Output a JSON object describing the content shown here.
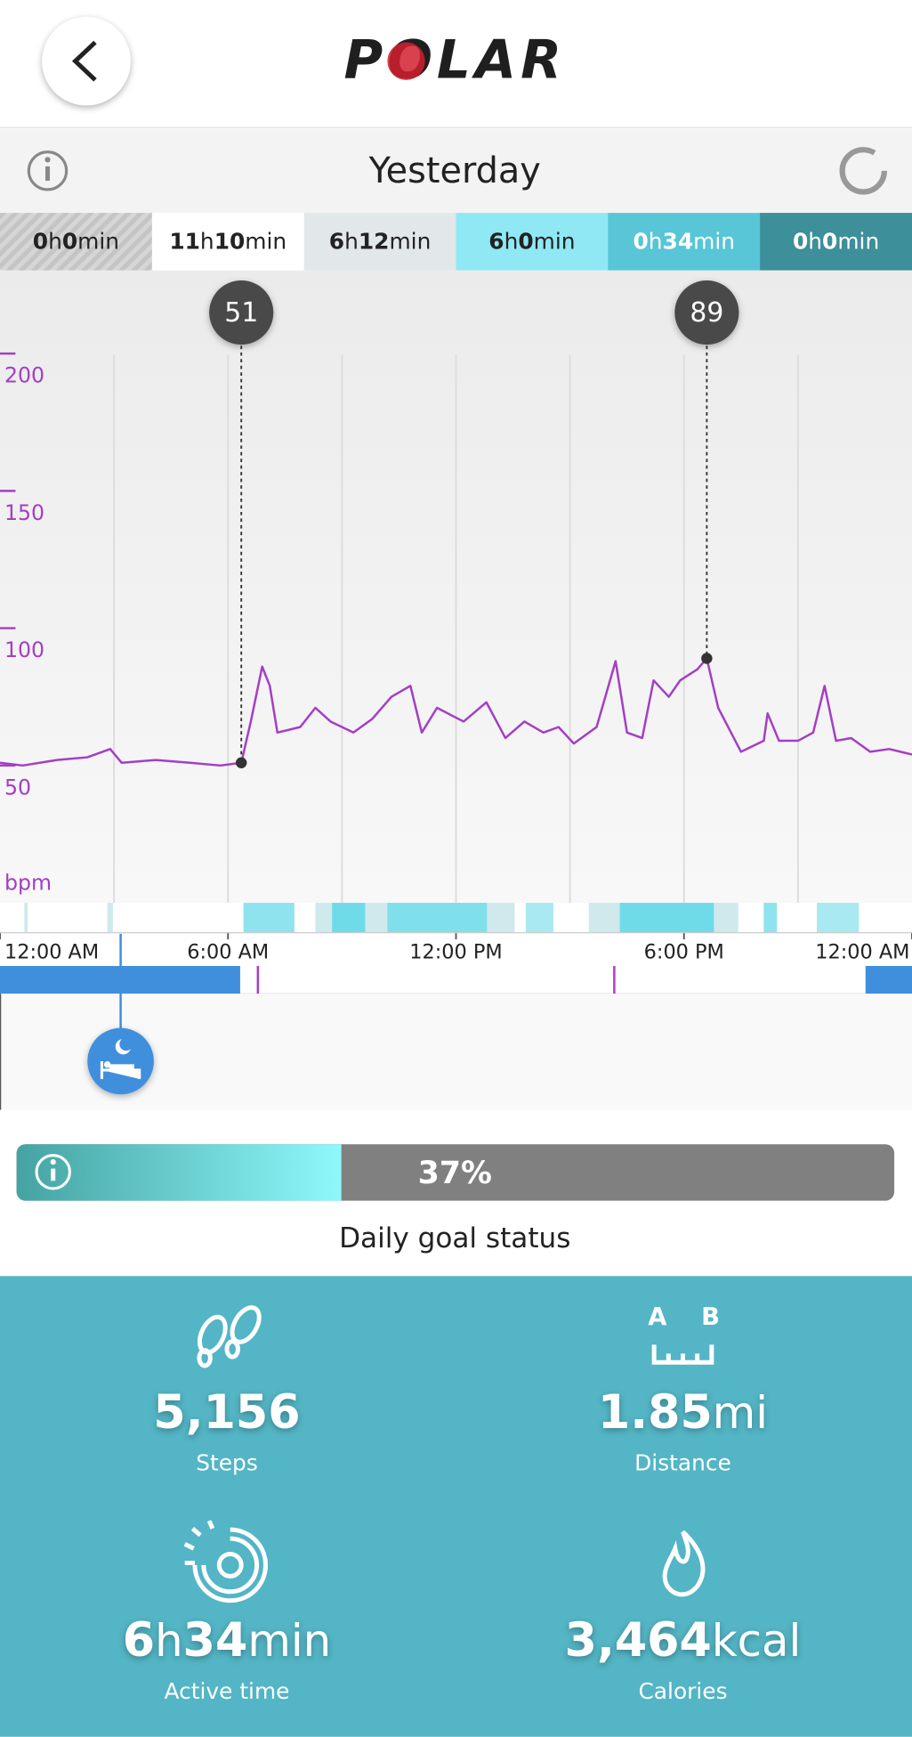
{
  "header": {
    "logo": "POLAR",
    "day": "Yesterday"
  },
  "zones": [
    [
      "0",
      "h",
      "0",
      "min"
    ],
    [
      "11",
      "h",
      "10",
      "min"
    ],
    [
      "6",
      "h",
      "12",
      "min"
    ],
    [
      "6",
      "h",
      "0",
      "min"
    ],
    [
      "0",
      "h",
      "34",
      "min"
    ],
    [
      "0",
      "h",
      "0",
      "min"
    ]
  ],
  "chart_data": {
    "type": "line",
    "y_unit_label": "bpm",
    "x": [
      0,
      0.6,
      1.5,
      2.3,
      2.9,
      3.2,
      4.1,
      5.0,
      5.8,
      6.35,
      6.6,
      6.9,
      7.1,
      7.3,
      7.9,
      8.3,
      8.7,
      9.3,
      9.8,
      10.3,
      10.8,
      11.1,
      11.5,
      12.2,
      12.8,
      13.3,
      13.8,
      14.3,
      14.7,
      15.1,
      15.7,
      16.2,
      16.5,
      16.9,
      17.2,
      17.6,
      17.9,
      18.35,
      18.6,
      18.9,
      19.5,
      20.1,
      20.2,
      20.5,
      21.0,
      21.4,
      21.7,
      22.0,
      22.4,
      22.9,
      23.4,
      24.0
    ],
    "values": [
      51,
      50,
      52,
      53,
      56,
      51,
      52,
      51,
      50,
      51,
      66,
      86,
      79,
      62,
      64,
      71,
      66,
      62,
      67,
      75,
      79,
      62,
      71,
      66,
      73,
      60,
      66,
      62,
      64,
      58,
      64,
      88,
      62,
      60,
      81,
      75,
      81,
      85,
      89,
      71,
      55,
      59,
      69,
      59,
      59,
      62,
      79,
      59,
      60,
      55,
      56,
      54
    ],
    "color": "#a43ec4",
    "markers": [
      {
        "x": 6.35,
        "value": 51
      },
      {
        "x": 18.6,
        "value": 89
      }
    ],
    "xlim": [
      0,
      24
    ],
    "ylim": [
      0,
      230
    ],
    "yticks": [
      50,
      100,
      150,
      200
    ],
    "xticks": [
      {
        "value": 0,
        "label": "12:00 AM"
      },
      {
        "value": 6,
        "label": "6:00 AM"
      },
      {
        "value": 12,
        "label": "12:00 PM"
      },
      {
        "value": 18,
        "label": "6:00 PM"
      },
      {
        "value": 24,
        "label": "12:00 AM"
      }
    ]
  },
  "goal": {
    "value": 37,
    "label": "37%",
    "caption": "Daily goal status"
  },
  "stats": [
    {
      "value": [
        "5,156"
      ],
      "label": "Steps"
    },
    {
      "value": [
        "1.85",
        "mi"
      ],
      "label": "Distance"
    },
    {
      "value": [
        "6",
        "h",
        "34",
        "min"
      ],
      "label": "Active time"
    },
    {
      "value": [
        "3,464",
        "kcal"
      ],
      "label": "Calories"
    }
  ]
}
